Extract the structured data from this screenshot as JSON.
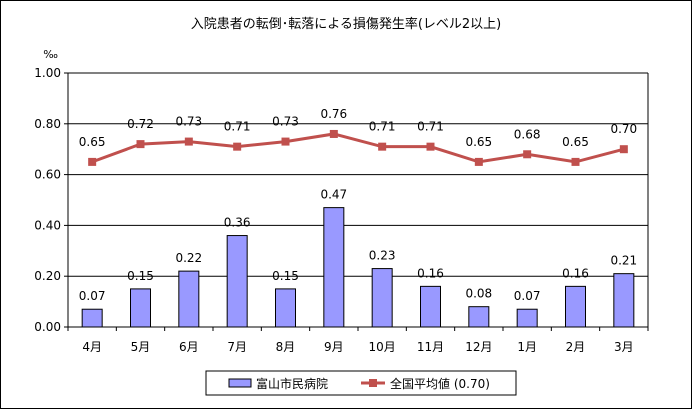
{
  "chart_data": {
    "type": "bar",
    "title": "入院患者の転倒･転落による損傷発生率(レベル2以上)",
    "unit": "‰",
    "ylim": [
      0,
      1.0
    ],
    "yticks": [
      "0.00",
      "0.20",
      "0.40",
      "0.60",
      "0.80",
      "1.00"
    ],
    "grid": true,
    "legend_position": "bottom",
    "categories": [
      "4月",
      "5月",
      "6月",
      "7月",
      "8月",
      "9月",
      "10月",
      "11月",
      "12月",
      "1月",
      "2月",
      "3月"
    ],
    "series": [
      {
        "name": "富山市民病院",
        "type": "bar",
        "color": "#9999ff",
        "values": [
          0.07,
          0.15,
          0.22,
          0.36,
          0.15,
          0.47,
          0.23,
          0.16,
          0.08,
          0.07,
          0.16,
          0.21
        ],
        "labels": [
          "0.07",
          "0.15",
          "0.22",
          "0.36",
          "0.15",
          "0.47",
          "0.23",
          "0.16",
          "0.08",
          "0.07",
          "0.16",
          "0.21"
        ]
      },
      {
        "name": "全国平均値 (0.70)",
        "type": "line",
        "color": "#c0504d",
        "values": [
          0.65,
          0.72,
          0.73,
          0.71,
          0.73,
          0.76,
          0.71,
          0.71,
          0.65,
          0.68,
          0.65,
          0.7
        ],
        "labels": [
          "0.65",
          "0.72",
          "0.73",
          "0.71",
          "0.73",
          "0.76",
          "0.71",
          "0.71",
          "0.65",
          "0.68",
          "0.65",
          "0.70"
        ]
      }
    ]
  }
}
